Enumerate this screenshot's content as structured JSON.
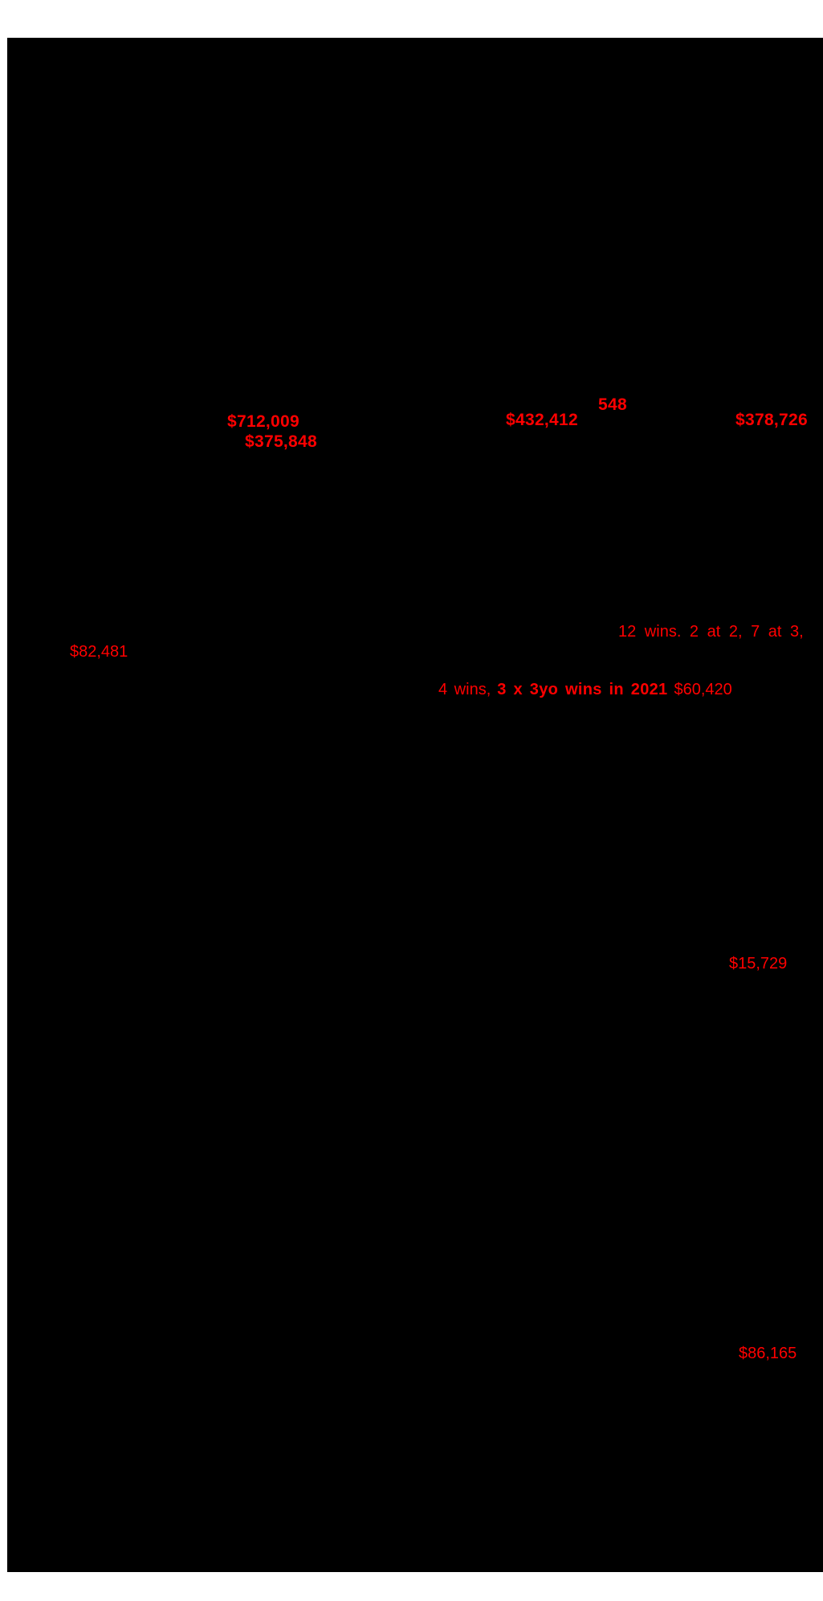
{
  "colors": {
    "page_background": "#000000",
    "margin_background": "#ffffff",
    "highlight_text": "#ff0000"
  },
  "document": {
    "lot_number": "548",
    "amounts": {
      "sire_line_1": "$712,009",
      "sire_line_2": "$375,848",
      "center": "$432,412",
      "right": "$378,726",
      "small": "$82,481",
      "mid": "$15,729",
      "bottom": "$86,165"
    },
    "race_record_line": "12 wins. 2 at 2, 7 at 3,",
    "wins_line": {
      "prefix": "4 wins,",
      "bold_highlight": "3 x 3yo wins in 2021",
      "amount": "$60,420"
    }
  }
}
